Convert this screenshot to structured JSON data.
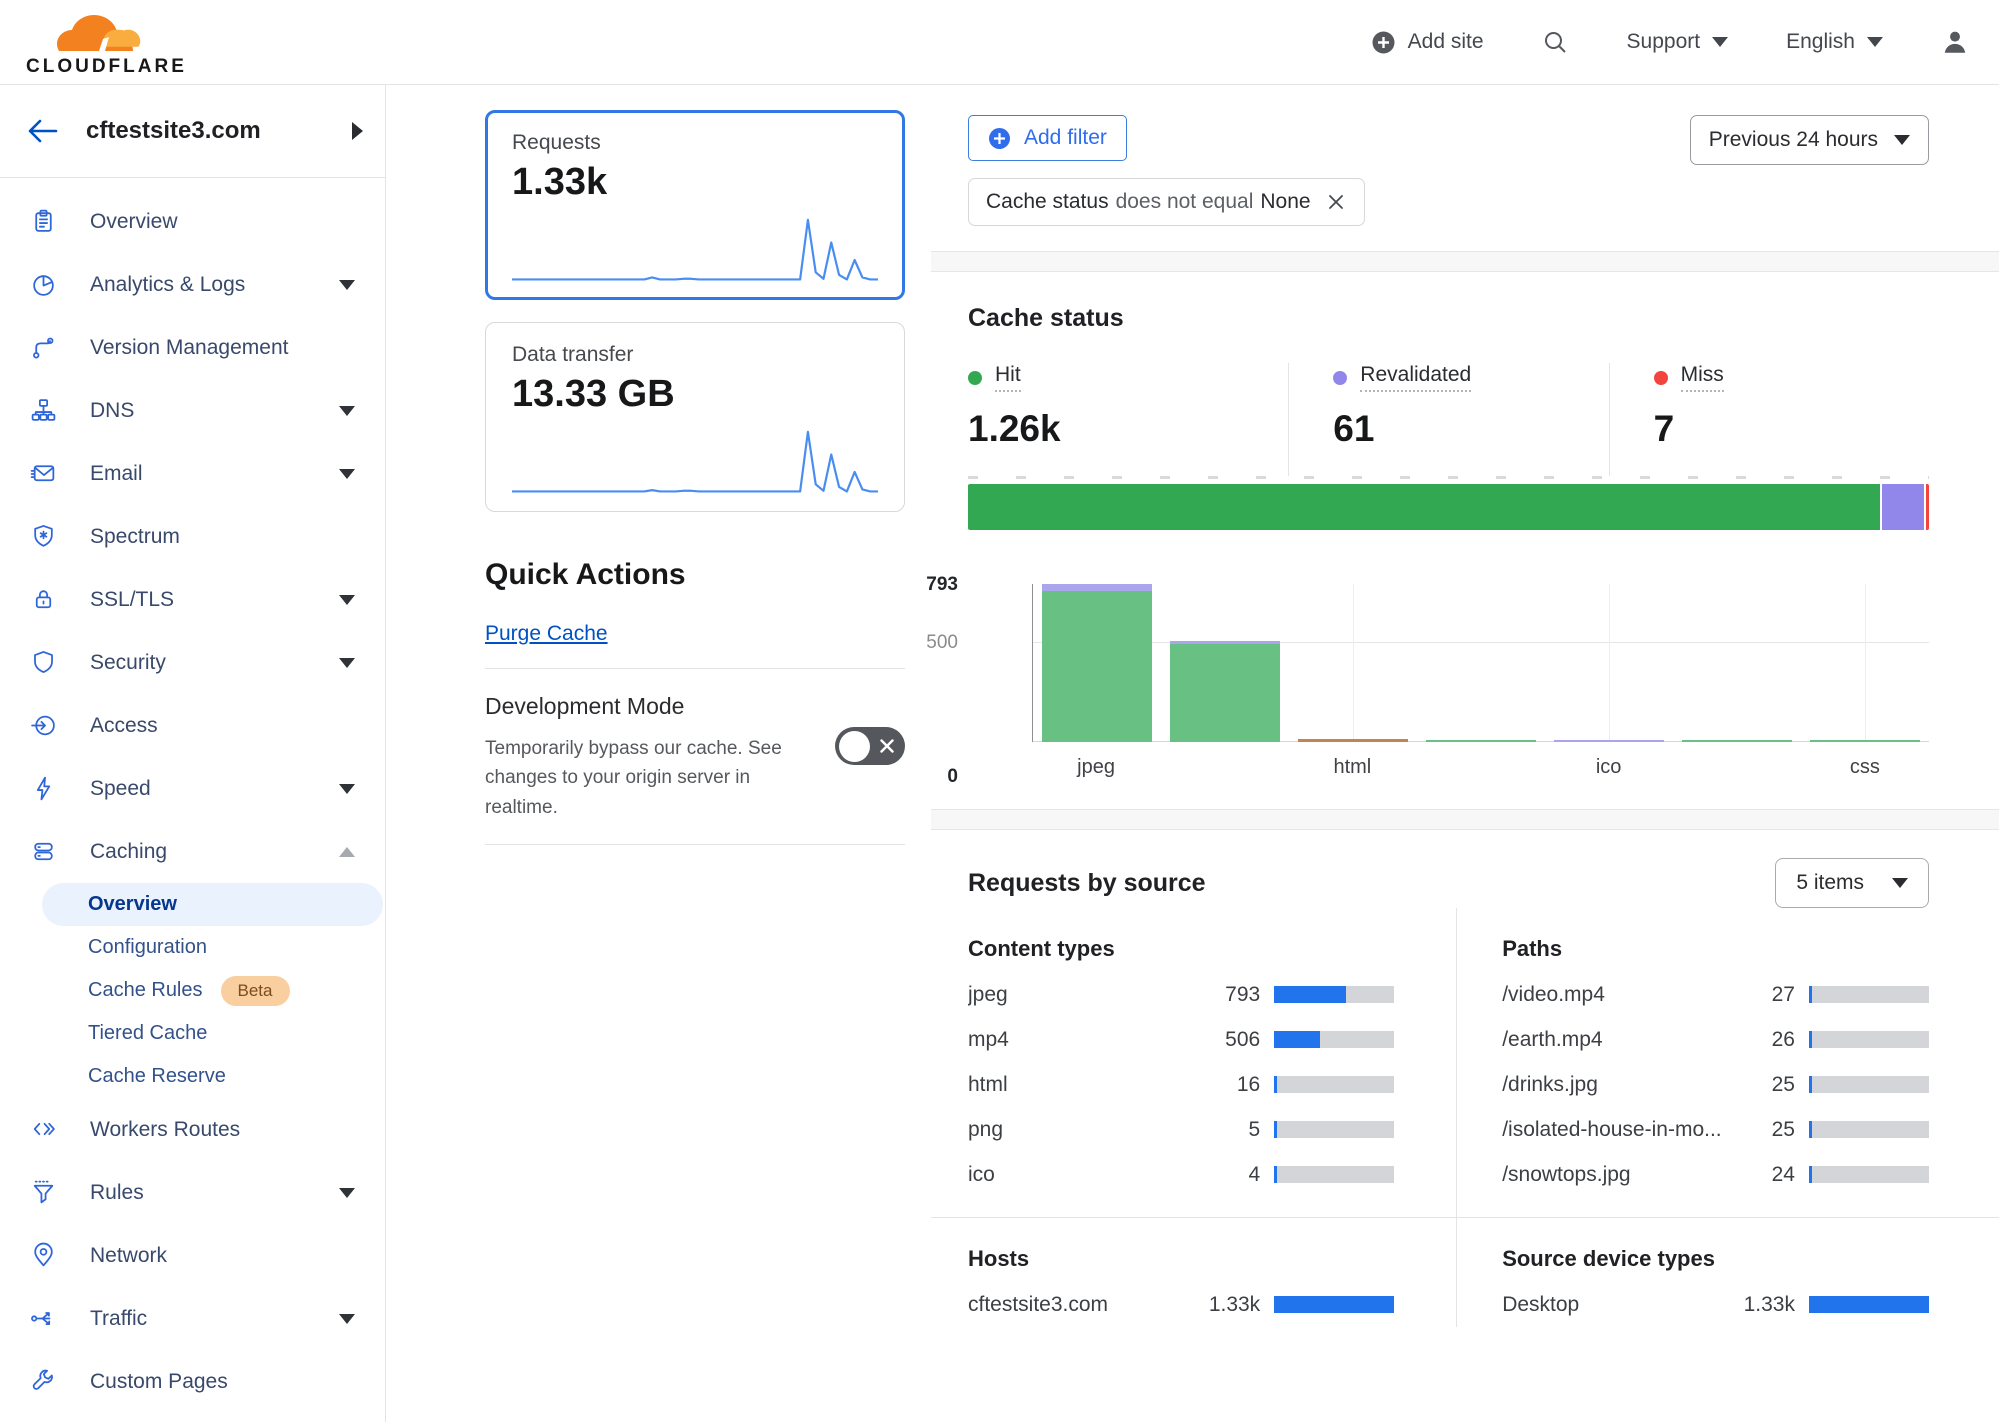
{
  "colors": {
    "accent_blue": "#0051c3",
    "spark_blue": "#4a8df0",
    "meter_blue": "#2274ec",
    "hit_green": "#33a852",
    "chart_green": "#68c083",
    "revalidated_purple": "#9187ea",
    "chart_purple": "#aba5ee",
    "miss_red": "#f1453d",
    "chart_orange": "#c08552"
  },
  "header": {
    "brand": "CLOUDFLARE",
    "add_site": "Add site",
    "support": "Support",
    "language": "English"
  },
  "sidebar": {
    "site": "cftestsite3.com",
    "items": [
      {
        "label": "Overview",
        "icon": "clipboard"
      },
      {
        "label": "Analytics & Logs",
        "icon": "analytics",
        "chevron": "down"
      },
      {
        "label": "Version Management",
        "icon": "branch"
      },
      {
        "label": "DNS",
        "icon": "dns",
        "chevron": "down"
      },
      {
        "label": "Email",
        "icon": "email",
        "chevron": "down"
      },
      {
        "label": "Spectrum",
        "icon": "spectrum"
      },
      {
        "label": "SSL/TLS",
        "icon": "lock",
        "chevron": "down"
      },
      {
        "label": "Security",
        "icon": "shield",
        "chevron": "down"
      },
      {
        "label": "Access",
        "icon": "access"
      },
      {
        "label": "Speed",
        "icon": "bolt",
        "chevron": "down"
      },
      {
        "label": "Caching",
        "icon": "cache",
        "chevron": "up",
        "children": [
          {
            "label": "Overview",
            "active": true
          },
          {
            "label": "Configuration"
          },
          {
            "label": "Cache Rules",
            "badge": "Beta"
          },
          {
            "label": "Tiered Cache"
          },
          {
            "label": "Cache Reserve"
          }
        ]
      },
      {
        "label": "Workers Routes",
        "icon": "code"
      },
      {
        "label": "Rules",
        "icon": "funnel",
        "chevron": "down"
      },
      {
        "label": "Network",
        "icon": "pin"
      },
      {
        "label": "Traffic",
        "icon": "traffic",
        "chevron": "down"
      },
      {
        "label": "Custom Pages",
        "icon": "wrench"
      }
    ]
  },
  "metrics": {
    "requests": {
      "label": "Requests",
      "value": "1.33k",
      "spark": [
        3,
        3,
        3,
        3,
        3,
        3,
        3,
        3,
        3,
        3,
        3,
        3,
        3,
        3,
        3,
        3,
        3,
        3,
        6,
        3,
        3,
        3,
        4,
        4,
        3,
        3,
        3,
        3,
        3,
        3,
        3,
        3,
        3,
        3,
        3,
        3,
        3,
        3,
        95,
        14,
        4,
        60,
        10,
        3,
        33,
        6,
        3,
        3
      ]
    },
    "data_transfer": {
      "label": "Data transfer",
      "value": "13.33 GB",
      "spark": [
        3,
        3,
        3,
        3,
        3,
        3,
        3,
        3,
        3,
        3,
        3,
        3,
        3,
        3,
        3,
        3,
        3,
        3,
        5,
        3,
        3,
        3,
        4,
        4,
        3,
        3,
        3,
        3,
        3,
        3,
        3,
        3,
        3,
        3,
        3,
        3,
        3,
        3,
        95,
        14,
        4,
        60,
        10,
        3,
        33,
        6,
        3,
        3
      ]
    }
  },
  "quick_actions": {
    "title": "Quick Actions",
    "purge_cache": "Purge Cache",
    "dev_mode": {
      "title": "Development Mode",
      "description": "Temporarily bypass our cache. See changes to your origin server in realtime.",
      "state": "off"
    }
  },
  "filters": {
    "add_filter": "Add filter",
    "chip": {
      "field": "Cache status",
      "operator": "does not equal",
      "value": "None"
    },
    "time_range": "Previous 24 hours"
  },
  "cache_status": {
    "title": "Cache status",
    "legend": [
      {
        "label": "Hit",
        "value": "1.26k",
        "color": "hit_green"
      },
      {
        "label": "Revalidated",
        "value": "61",
        "color": "revalidated_purple"
      },
      {
        "label": "Miss",
        "value": "7",
        "color": "miss_red"
      }
    ],
    "stacked_bar": [
      {
        "name": "Hit",
        "pct": 94.9,
        "color": "hit_green"
      },
      {
        "name": "Revalidated",
        "pct": 4.6,
        "color": "revalidated_purple"
      },
      {
        "name": "Miss",
        "pct": 0.5,
        "color": "miss_red"
      }
    ]
  },
  "chart_data": {
    "type": "bar",
    "stacked": true,
    "ymax": 793,
    "yticks": [
      793,
      500,
      0
    ],
    "bars": [
      {
        "label": "jpeg",
        "segments": [
          [
            "chart_green",
            760
          ],
          [
            "chart_purple",
            33
          ]
        ]
      },
      {
        "label": "",
        "segments": [
          [
            "chart_green",
            490
          ],
          [
            "chart_purple",
            16
          ]
        ]
      },
      {
        "label": "html",
        "segments": [
          [
            "chart_orange",
            16
          ]
        ]
      },
      {
        "label": "",
        "segments": [
          [
            "chart_green",
            5
          ]
        ]
      },
      {
        "label": "ico",
        "segments": [
          [
            "chart_purple",
            4
          ]
        ]
      },
      {
        "label": "",
        "segments": [
          [
            "chart_green",
            2
          ]
        ]
      },
      {
        "label": "css",
        "segments": [
          [
            "chart_green",
            1
          ]
        ]
      }
    ]
  },
  "requests_by_source": {
    "title": "Requests by source",
    "items_dropdown": "5 items",
    "content_types": {
      "heading": "Content types",
      "rows": [
        [
          "jpeg",
          "793",
          59.7
        ],
        [
          "mp4",
          "506",
          38.1
        ],
        [
          "html",
          "16",
          1.2
        ],
        [
          "png",
          "5",
          0.4
        ],
        [
          "ico",
          "4",
          0.3
        ]
      ]
    },
    "paths": {
      "heading": "Paths",
      "rows": [
        [
          "/video.mp4",
          "27",
          2.0
        ],
        [
          "/earth.mp4",
          "26",
          2.0
        ],
        [
          "/drinks.jpg",
          "25",
          1.9
        ],
        [
          "/isolated-house-in-mo...",
          "25",
          1.9
        ],
        [
          "/snowtops.jpg",
          "24",
          1.8
        ]
      ]
    },
    "hosts": {
      "heading": "Hosts",
      "rows": [
        [
          "cftestsite3.com",
          "1.33k",
          100
        ]
      ]
    },
    "device_types": {
      "heading": "Source device types",
      "rows": [
        [
          "Desktop",
          "1.33k",
          100
        ]
      ]
    }
  }
}
